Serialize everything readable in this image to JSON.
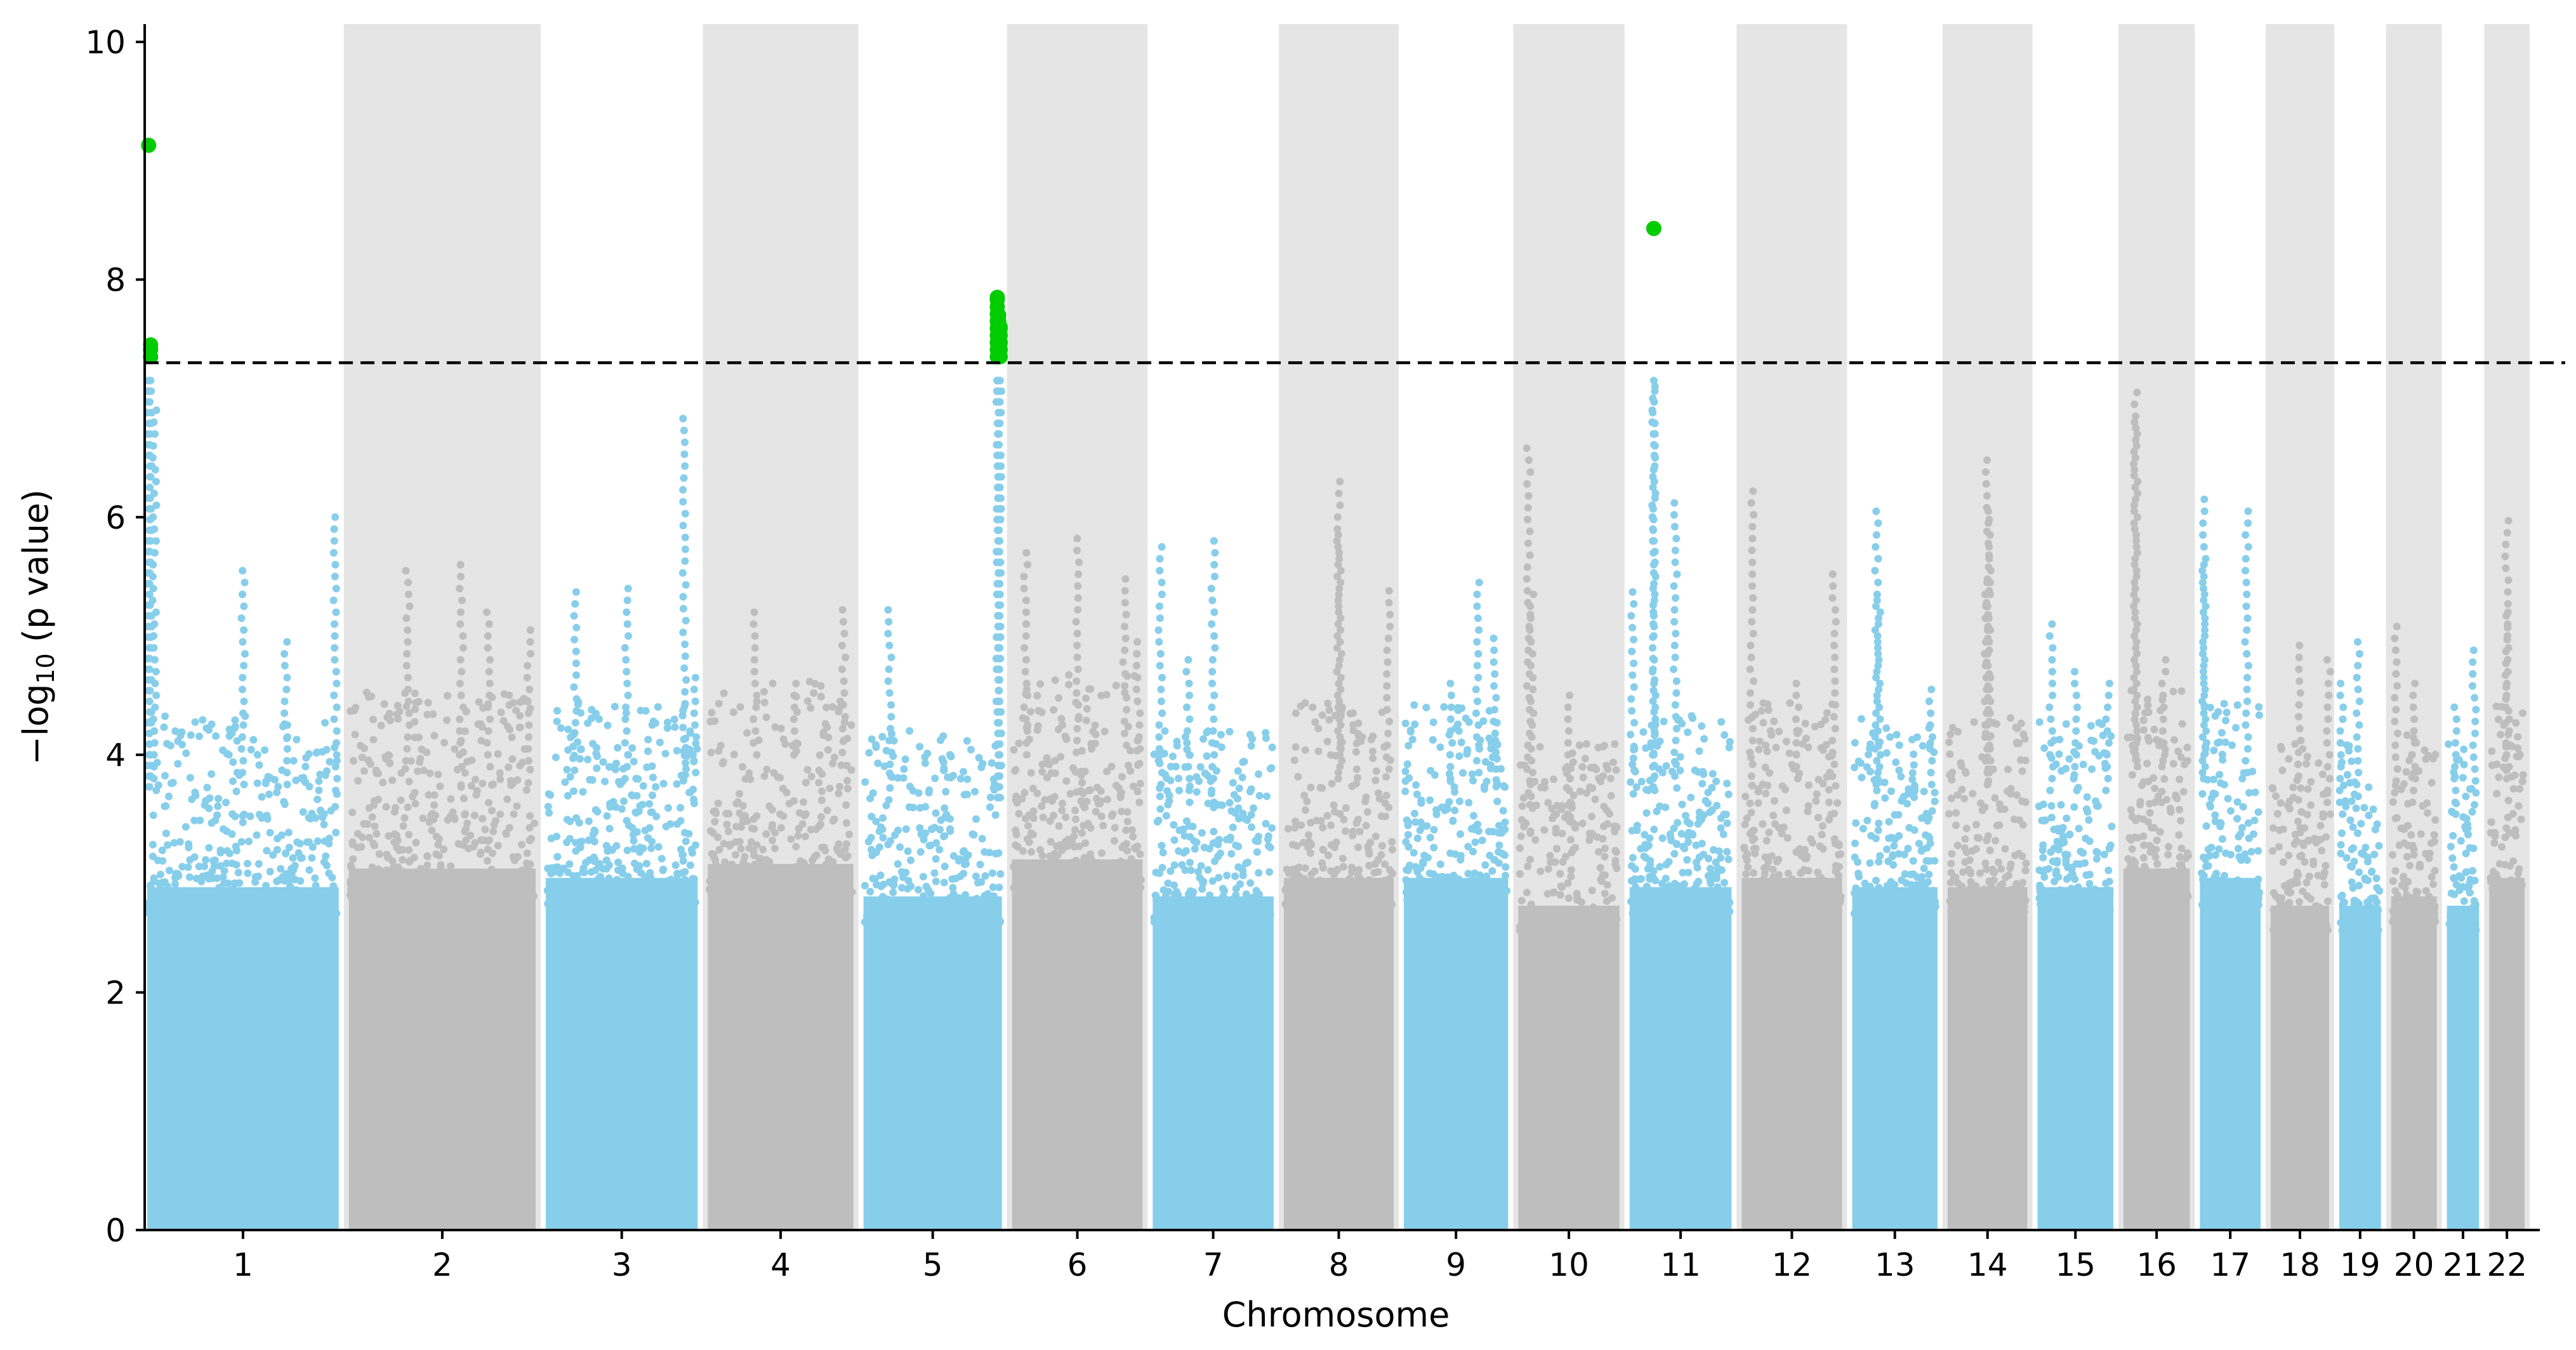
{
  "chart_data": {
    "type": "scatter",
    "subtype": "manhattan",
    "title": "",
    "xlabel": "Chromosome",
    "ylabel_prefix": "−log",
    "ylabel_sub": "10",
    "ylabel_suffix": " (p value)",
    "ylim": [
      0,
      10.15
    ],
    "yticks": [
      0,
      2,
      4,
      6,
      8,
      10
    ],
    "significance_threshold": 7.3,
    "colors": {
      "odd": "#87ceeb",
      "even": "#bebebe",
      "significant": "#00cc00",
      "band": "#e5e5e5",
      "threshold": "#000000"
    },
    "chromosomes": [
      {
        "label": "1",
        "length": 248,
        "base": 3.7,
        "peaks": [
          [
            0.02,
            9.13
          ],
          [
            0.03,
            7.45
          ],
          [
            0.05,
            6.9
          ],
          [
            0.5,
            5.55
          ],
          [
            0.72,
            4.95
          ],
          [
            0.97,
            6.0
          ]
        ]
      },
      {
        "label": "2",
        "length": 242,
        "base": 3.9,
        "peaks": [
          [
            0.32,
            5.55
          ],
          [
            0.6,
            5.6
          ],
          [
            0.74,
            5.2
          ],
          [
            0.95,
            5.05
          ]
        ]
      },
      {
        "label": "3",
        "length": 198,
        "base": 3.8,
        "peaks": [
          [
            0.2,
            5.37
          ],
          [
            0.53,
            5.4
          ],
          [
            0.9,
            6.83
          ],
          [
            0.97,
            4.65
          ]
        ]
      },
      {
        "label": "4",
        "length": 190,
        "base": 3.95,
        "peaks": [
          [
            0.33,
            5.2
          ],
          [
            0.92,
            5.22
          ],
          [
            0.6,
            4.6
          ]
        ]
      },
      {
        "label": "5",
        "length": 181,
        "base": 3.6,
        "peaks": [
          [
            0.2,
            5.22
          ],
          [
            0.95,
            7.85
          ],
          [
            0.96,
            7.7
          ],
          [
            0.97,
            7.6
          ]
        ]
      },
      {
        "label": "6",
        "length": 171,
        "base": 4.0,
        "peaks": [
          [
            0.12,
            5.7
          ],
          [
            0.5,
            5.82
          ],
          [
            0.85,
            5.48
          ],
          [
            0.95,
            4.95
          ]
        ]
      },
      {
        "label": "7",
        "length": 159,
        "base": 3.6,
        "peaks": [
          [
            0.08,
            5.75
          ],
          [
            0.5,
            5.8
          ],
          [
            0.3,
            4.8
          ]
        ]
      },
      {
        "label": "8",
        "length": 145,
        "base": 3.8,
        "peaks": [
          [
            0.5,
            6.3
          ],
          [
            0.51,
            5.85
          ],
          [
            0.93,
            5.38
          ]
        ]
      },
      {
        "label": "9",
        "length": 138,
        "base": 3.8,
        "peaks": [
          [
            0.7,
            5.45
          ],
          [
            0.85,
            4.98
          ],
          [
            0.45,
            4.6
          ]
        ]
      },
      {
        "label": "10",
        "length": 134,
        "base": 3.5,
        "peaks": [
          [
            0.12,
            6.58
          ],
          [
            0.15,
            5.35
          ],
          [
            0.5,
            4.5
          ]
        ]
      },
      {
        "label": "11",
        "length": 135,
        "base": 3.7,
        "peaks": [
          [
            0.25,
            8.43
          ],
          [
            0.25,
            7.1
          ],
          [
            0.45,
            6.12
          ],
          [
            0.05,
            5.37
          ]
        ]
      },
      {
        "label": "12",
        "length": 133,
        "base": 3.8,
        "peaks": [
          [
            0.12,
            6.22
          ],
          [
            0.9,
            5.52
          ],
          [
            0.55,
            4.6
          ]
        ]
      },
      {
        "label": "13",
        "length": 114,
        "base": 3.7,
        "peaks": [
          [
            0.3,
            6.05
          ],
          [
            0.32,
            5.3
          ],
          [
            0.9,
            4.55
          ]
        ]
      },
      {
        "label": "14",
        "length": 107,
        "base": 3.7,
        "peaks": [
          [
            0.5,
            6.48
          ],
          [
            0.52,
            6.05
          ],
          [
            0.48,
            5.45
          ]
        ]
      },
      {
        "label": "15",
        "length": 102,
        "base": 3.7,
        "peaks": [
          [
            0.2,
            5.1
          ],
          [
            0.5,
            4.7
          ],
          [
            0.9,
            4.6
          ]
        ]
      },
      {
        "label": "16",
        "length": 90,
        "base": 3.9,
        "peaks": [
          [
            0.2,
            7.05
          ],
          [
            0.21,
            6.8
          ],
          [
            0.6,
            4.8
          ]
        ]
      },
      {
        "label": "17",
        "length": 83,
        "base": 3.8,
        "peaks": [
          [
            0.1,
            6.15
          ],
          [
            0.75,
            6.05
          ],
          [
            0.12,
            5.6
          ]
        ]
      },
      {
        "label": "18",
        "length": 80,
        "base": 3.5,
        "peaks": [
          [
            0.5,
            4.92
          ],
          [
            0.95,
            4.8
          ]
        ]
      },
      {
        "label": "19",
        "length": 59,
        "base": 3.5,
        "peaks": [
          [
            0.45,
            4.95
          ],
          [
            0.1,
            4.6
          ]
        ]
      },
      {
        "label": "20",
        "length": 64,
        "base": 3.6,
        "peaks": [
          [
            0.15,
            5.08
          ],
          [
            0.5,
            4.6
          ]
        ]
      },
      {
        "label": "21",
        "length": 47,
        "base": 3.5,
        "peaks": [
          [
            0.8,
            4.88
          ],
          [
            0.3,
            4.4
          ]
        ]
      },
      {
        "label": "22",
        "length": 51,
        "base": 3.8,
        "peaks": [
          [
            0.5,
            5.97
          ],
          [
            0.52,
            5.2
          ]
        ]
      }
    ]
  }
}
